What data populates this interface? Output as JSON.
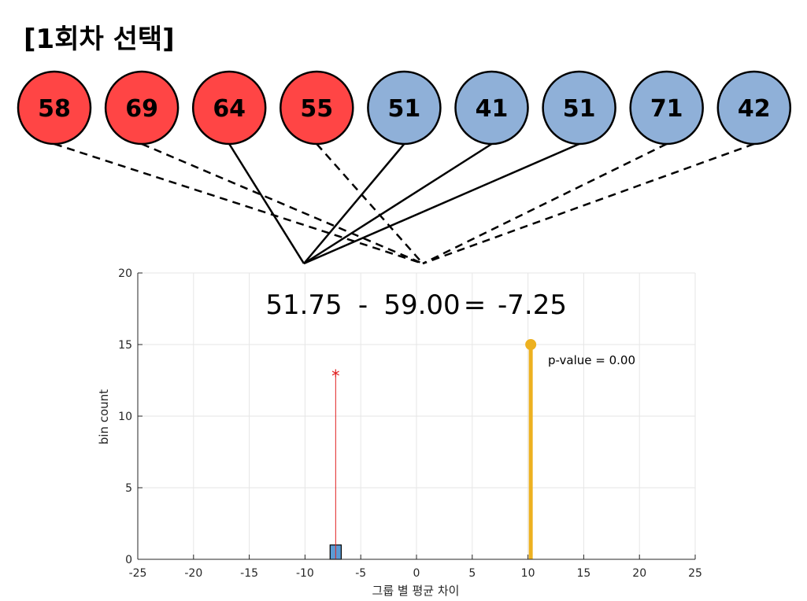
{
  "title": "[1회차 선택]",
  "balls": [
    {
      "value": "58",
      "group": "red",
      "line": "dashed"
    },
    {
      "value": "69",
      "group": "red",
      "line": "dashed"
    },
    {
      "value": "64",
      "group": "red",
      "line": "solid"
    },
    {
      "value": "55",
      "group": "red",
      "line": "dashed"
    },
    {
      "value": "51",
      "group": "blue",
      "line": "solid"
    },
    {
      "value": "41",
      "group": "blue",
      "line": "solid"
    },
    {
      "value": "51",
      "group": "blue",
      "line": "solid"
    },
    {
      "value": "71",
      "group": "blue",
      "line": "dashed"
    },
    {
      "value": "42",
      "group": "blue",
      "line": "dashed"
    }
  ],
  "colors": {
    "red_ball": "#ff4545",
    "blue_ball": "#8fb0d8",
    "histogram_bar": "#5b9bd5",
    "observed_line": "#edb120",
    "sample_marker": "#e02020",
    "grid": "#e6e6e6"
  },
  "equation": {
    "mean_a": "51.75",
    "minus": "-",
    "mean_b": "59.00",
    "equals": "=",
    "diff": "-7.25"
  },
  "pvalue_label": "p-value = 0.00",
  "chart_data": {
    "type": "bar",
    "xlabel": "그룹 별 평균 차이",
    "ylabel": "bin count",
    "xlim": [
      -25,
      25
    ],
    "ylim": [
      0,
      20
    ],
    "xticks": [
      -25,
      -20,
      -15,
      -10,
      -5,
      0,
      5,
      10,
      15,
      20,
      25
    ],
    "yticks": [
      0,
      5,
      10,
      15,
      20
    ],
    "grid": true,
    "histogram": [
      {
        "x_start": -7.75,
        "x_end": -6.75,
        "count": 1
      }
    ],
    "current_sample": {
      "x": -7.25,
      "y": 13
    },
    "observed_difference": {
      "x": 10.25,
      "y": 15
    }
  }
}
